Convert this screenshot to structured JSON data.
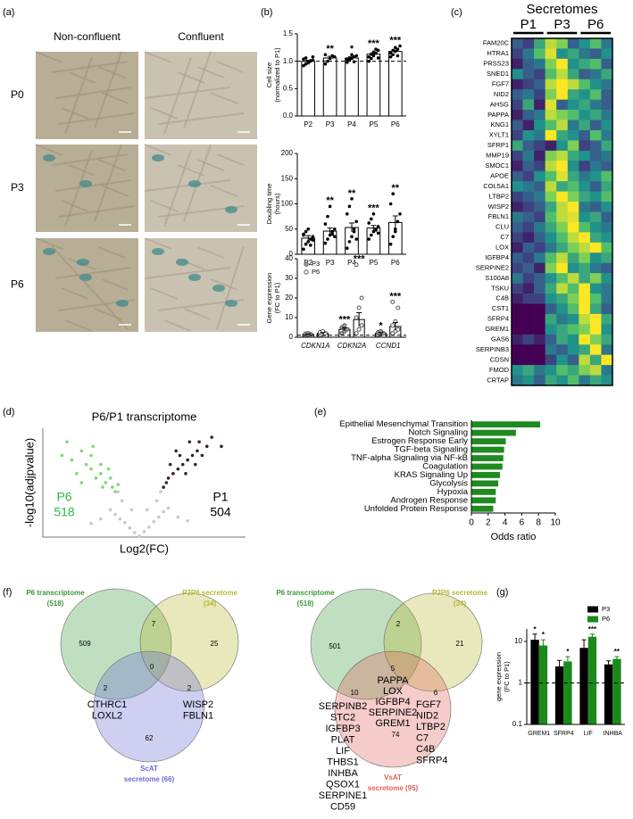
{
  "panel_labels": [
    "(a)",
    "(b)",
    "(c)",
    "(d)",
    "(e)",
    "(f)",
    "(g)"
  ],
  "micrographs": {
    "columns": [
      "Non-confluent",
      "Confluent"
    ],
    "rows": [
      "P0",
      "P3",
      "P6"
    ]
  },
  "chart_data": [
    {
      "type": "dot-bar",
      "ylabel": [
        "Cell size",
        "(normalized to P1)"
      ],
      "categories": [
        "P2",
        "P3",
        "P4",
        "P5",
        "P6"
      ],
      "values": [
        1.0,
        1.06,
        1.06,
        1.13,
        1.18
      ],
      "errors": [
        0.02,
        0.03,
        0.02,
        0.02,
        0.02
      ],
      "points": [
        [
          0.92,
          0.95,
          0.97,
          1.0,
          1.02,
          1.04,
          1.06,
          0.98,
          1.01,
          1.08
        ],
        [
          0.95,
          1.0,
          1.05,
          1.1,
          1.08,
          1.12
        ],
        [
          0.98,
          1.02,
          1.05,
          1.08,
          1.1,
          1.03,
          1.06,
          1.12,
          0.99
        ],
        [
          1.0,
          1.05,
          1.1,
          1.15,
          1.2,
          1.08,
          1.13,
          1.17,
          1.22,
          1.06
        ],
        [
          1.08,
          1.12,
          1.18,
          1.22,
          1.28,
          1.15,
          1.2,
          1.25,
          1.1
        ]
      ],
      "significance": [
        null,
        "**",
        "*",
        "***",
        "***"
      ],
      "color": "#ffffff",
      "ylim": [
        0,
        1.5
      ],
      "yticks": [
        {
          "value": 0,
          "label": "0.0"
        },
        {
          "value": 0.5,
          "label": "0.5"
        },
        {
          "value": 1,
          "label": "1.0"
        },
        {
          "value": 1.5,
          "label": "1.5"
        }
      ],
      "reference_line": 1
    },
    {
      "type": "dot-bar",
      "ylabel": [
        "Doubling time",
        "(hours)"
      ],
      "categories": [
        "P2",
        "P3",
        "P4",
        "P5",
        "P6"
      ],
      "values": [
        32,
        46,
        53,
        52,
        63
      ],
      "errors": [
        5,
        6,
        9,
        5,
        13
      ],
      "points": [
        [
          10,
          20,
          25,
          30,
          35,
          40,
          45,
          50,
          18,
          28,
          38
        ],
        [
          22,
          30,
          38,
          45,
          50,
          60,
          75,
          95,
          40,
          35
        ],
        [
          12,
          25,
          35,
          50,
          65,
          80,
          95,
          110,
          45,
          30
        ],
        [
          30,
          38,
          45,
          50,
          55,
          62,
          70,
          80,
          48,
          42
        ],
        [
          20,
          35,
          50,
          65,
          80,
          100,
          120,
          45
        ]
      ],
      "significance": [
        null,
        "**",
        "**",
        "***",
        "**"
      ],
      "color": "#ffffff",
      "ylim": [
        0,
        200
      ],
      "yticks": [
        0,
        50,
        100,
        150,
        200
      ]
    },
    {
      "type": "grouped-dot-bar",
      "ylabel": [
        "Gene expression",
        "(FC to P1)"
      ],
      "categories": [
        "CDKN1A",
        "CDKN2A",
        "CCND1"
      ],
      "series": [
        {
          "name": "P3",
          "color": "#a6a6a6",
          "values": [
            1.5,
            4,
            2
          ],
          "errors": [
            0.2,
            0.8,
            0.4
          ],
          "points": [
            [
              0.8,
              1.2,
              1.5,
              1.8,
              2.0
            ],
            [
              2,
              3,
              4,
              5,
              6
            ],
            [
              1,
              1.5,
              2,
              2.5,
              3
            ]
          ],
          "significance": [
            null,
            "***",
            "*"
          ]
        },
        {
          "name": "P6",
          "color": "#ffffff",
          "values": [
            2,
            9,
            5.5
          ],
          "errors": [
            0.4,
            3.5,
            2
          ],
          "points": [
            [
              1,
              1.5,
              2,
              2.5,
              3,
              1.8
            ],
            [
              2,
              4,
              6,
              10,
              15,
              20,
              37
            ],
            [
              2,
              3,
              4,
              6,
              8,
              15,
              18
            ]
          ],
          "significance": [
            null,
            "***",
            "***"
          ]
        }
      ],
      "ylim": [
        0,
        40
      ],
      "yticks": [
        0,
        10,
        20,
        30,
        40
      ],
      "reference_line": 1
    },
    {
      "type": "heatmap",
      "title": "Secretomes",
      "groups": [
        "P1",
        "P3",
        "P6"
      ],
      "colormap": "viridis",
      "rows": [
        "FAM20C",
        "HTRA1",
        "PRSS23",
        "SNED1",
        "FGF7",
        "NID2",
        "AHSG",
        "PAPPA",
        "KNG1",
        "XYLT1",
        "SFRP1",
        "MMP19",
        "SMOC1",
        "APOE",
        "COL5A1",
        "LTBP2",
        "WISP2",
        "FBLN1",
        "CLU",
        "C7",
        "LOX",
        "IGFBP4",
        "SERPINE2",
        "S100A8",
        "TSKU",
        "C4B",
        "CST1",
        "SFRP4",
        "GREM1",
        "GAS6",
        "SERPINB3",
        "CDSN",
        "FMOD",
        "CRTAP"
      ],
      "values": [
        [
          0.3,
          0.2,
          0.6,
          0.9,
          0.8,
          0.3,
          0.5,
          0.7,
          0.4
        ],
        [
          0.2,
          0.4,
          0.7,
          0.95,
          0.5,
          0.6,
          0.4,
          0.3,
          0.5
        ],
        [
          0.1,
          0.3,
          0.4,
          0.8,
          1.0,
          0.5,
          0.6,
          0.7,
          0.3
        ],
        [
          0.5,
          0.3,
          0.2,
          0.7,
          0.9,
          0.6,
          0.3,
          0.4,
          0.6
        ],
        [
          0.1,
          0.2,
          0.3,
          0.9,
          1.0,
          0.9,
          0.7,
          0.5,
          0.4
        ],
        [
          0.3,
          0.4,
          0.2,
          0.8,
          1.0,
          0.6,
          0.5,
          0.7,
          0.3
        ],
        [
          0.2,
          0.6,
          0.1,
          0.95,
          0.3,
          0.5,
          0.6,
          0.4,
          0.3
        ],
        [
          0.1,
          0.3,
          0.4,
          0.9,
          0.8,
          0.7,
          0.5,
          0.6,
          0.4
        ],
        [
          0.3,
          0.1,
          0.5,
          0.7,
          0.9,
          0.4,
          0.6,
          0.3,
          0.5
        ],
        [
          0.2,
          0.5,
          0.4,
          1.0,
          0.6,
          0.5,
          0.3,
          0.7,
          0.4
        ],
        [
          0.6,
          0.3,
          0.2,
          0.1,
          0.5,
          0.8,
          0.2,
          0.3,
          0.6
        ],
        [
          0.2,
          0.4,
          0.1,
          0.8,
          0.9,
          0.6,
          0.5,
          0.3,
          0.4
        ],
        [
          0.1,
          0.3,
          0.2,
          0.9,
          1.0,
          0.5,
          0.2,
          0.4,
          0.3
        ],
        [
          0.3,
          0.2,
          0.5,
          0.7,
          0.95,
          0.6,
          0.4,
          0.5,
          0.7
        ],
        [
          0.5,
          0.4,
          0.3,
          0.9,
          0.6,
          0.7,
          0.5,
          0.3,
          0.6
        ],
        [
          0.2,
          0.3,
          0.4,
          0.8,
          1.0,
          0.8,
          0.6,
          0.5,
          0.7
        ],
        [
          0.1,
          0.2,
          0.3,
          0.6,
          0.9,
          1.0,
          0.4,
          0.3,
          0.5
        ],
        [
          0.4,
          0.3,
          0.2,
          0.7,
          0.9,
          0.95,
          0.5,
          0.6,
          0.3
        ],
        [
          0.3,
          0.2,
          0.4,
          0.6,
          0.8,
          1.0,
          0.7,
          0.5,
          0.4
        ],
        [
          0.2,
          0.1,
          0.3,
          0.5,
          0.7,
          0.9,
          1.0,
          0.6,
          0.5
        ],
        [
          0.1,
          0.3,
          0.2,
          0.4,
          0.6,
          0.8,
          0.9,
          1.0,
          0.7
        ],
        [
          0.3,
          0.2,
          0.4,
          0.7,
          0.9,
          0.6,
          0.8,
          0.5,
          0.6
        ],
        [
          0.2,
          0.3,
          0.1,
          0.8,
          1.0,
          0.5,
          0.6,
          0.4,
          0.3
        ],
        [
          0.4,
          0.2,
          0.3,
          0.5,
          0.7,
          0.9,
          0.6,
          0.8,
          0.5
        ],
        [
          0.2,
          0.1,
          0.3,
          0.6,
          0.9,
          0.7,
          1.0,
          0.5,
          0.4
        ],
        [
          0.1,
          0.2,
          0.2,
          0.5,
          0.6,
          0.8,
          1.0,
          0.7,
          0.4
        ],
        [
          0.0,
          0.0,
          0.0,
          0.3,
          0.5,
          0.7,
          1.0,
          0.6,
          0.3
        ],
        [
          0.0,
          0.0,
          0.0,
          0.6,
          0.4,
          0.5,
          0.9,
          1.0,
          0.6
        ],
        [
          0.0,
          0.0,
          0.0,
          0.5,
          0.6,
          0.7,
          0.8,
          1.0,
          0.5
        ],
        [
          0.1,
          0.2,
          0.1,
          0.3,
          0.6,
          0.5,
          1.0,
          0.8,
          0.6
        ],
        [
          0.0,
          0.0,
          0.0,
          0.4,
          0.3,
          0.5,
          0.6,
          1.0,
          0.4
        ],
        [
          0.0,
          0.0,
          0.0,
          0.2,
          0.5,
          0.3,
          0.9,
          0.6,
          1.0
        ],
        [
          0.5,
          0.6,
          0.4,
          0.5,
          0.7,
          0.6,
          0.8,
          0.9,
          0.4
        ],
        [
          0.4,
          0.5,
          0.3,
          0.6,
          0.5,
          0.7,
          0.4,
          0.6,
          0.5
        ]
      ]
    },
    {
      "type": "volcano",
      "title": "P6/P1 transcriptome",
      "xlabel": "Log2(FC)",
      "ylabel": "-log10(adjpvalue)",
      "xlim": [
        -10,
        11
      ],
      "ylim": [
        0,
        12
      ],
      "series": [
        {
          "color": "#c8c8c8",
          "x": [
            -3,
            -2.5,
            -2,
            -1.5,
            -1,
            -0.5,
            0,
            0.5,
            1,
            1.5,
            2,
            2.5,
            3,
            -4,
            4,
            -1.8,
            1.8,
            -0.8,
            0.8,
            -2.2,
            2.2,
            -5,
            5
          ],
          "y": [
            3,
            2.5,
            2,
            1.6,
            1,
            0.5,
            0.1,
            0.6,
            1.1,
            1.7,
            2.2,
            2.8,
            3.2,
            2,
            2.2,
            4,
            4,
            3,
            3,
            5,
            5,
            1.5,
            1.8
          ]
        },
        {
          "color": "#7ed67e",
          "x": [
            -8,
            -7,
            -6.5,
            -6,
            -5.5,
            -5,
            -4.5,
            -4,
            -3.5,
            -3,
            -2.8,
            -2.5,
            -7.5,
            -6,
            -5,
            -4,
            -3.2,
            -2.2,
            -4.8,
            -3.8
          ],
          "y": [
            9,
            8.5,
            7,
            9.5,
            8,
            7.5,
            6.5,
            7,
            6,
            6.5,
            5.5,
            5,
            10.5,
            6,
            9,
            8,
            7.5,
            5.8,
            10,
            5.5
          ]
        },
        {
          "color": "#3d1f2e",
          "x": [
            2.5,
            3,
            3.5,
            4,
            4.5,
            5,
            5.5,
            6,
            6.5,
            7,
            2.8,
            3.2,
            4.2,
            5.2,
            6.2,
            3.8,
            4.8,
            5.8,
            7.5,
            8.5
          ],
          "y": [
            5.5,
            6.5,
            7,
            7.5,
            8,
            8.5,
            9,
            9.5,
            9,
            10,
            6,
            8,
            9,
            10.5,
            10.5,
            9.5,
            7,
            8,
            11,
            10
          ]
        }
      ],
      "annotations": [
        {
          "label": "P6",
          "count": 518,
          "color": "#2db84d"
        },
        {
          "label": "P1",
          "count": 504,
          "color": "#000000"
        }
      ]
    },
    {
      "type": "hbar",
      "categories": [
        "Epithelial Mesenchymal Transition",
        "Notch Signaling",
        "Estrogen Response Early",
        "TGF-beta Signaling",
        "TNF-alpha Signaling via NF-kB",
        "Coagulation",
        "KRAS Signaling Up",
        "Glycolysis",
        "Hypoxia",
        "Androgen Response",
        "Unfolded Protein Response"
      ],
      "values": [
        8.2,
        5.3,
        4.1,
        3.9,
        3.8,
        3.7,
        3.4,
        3.2,
        2.9,
        2.9,
        2.6
      ],
      "color": "#1f8a1f",
      "xlim": [
        0,
        10
      ],
      "xticks": [
        0,
        2,
        4,
        6,
        8,
        10
      ],
      "xlabel": "Odds ratio"
    },
    {
      "type": "log-bar",
      "log_scale": true,
      "ylabel": [
        "gene expression",
        "(FC to P1)"
      ],
      "categories": [
        "GREM1",
        "SFRP4",
        "LIF",
        "INHBA"
      ],
      "series": [
        {
          "name": "P3",
          "color": "#000000",
          "values": [
            11,
            2.5,
            7,
            2.8
          ],
          "errors": [
            4,
            1,
            4,
            0.6
          ],
          "significance": [
            "*",
            null,
            null,
            null
          ]
        },
        {
          "name": "P6",
          "color": "#1a8a1a",
          "values": [
            8,
            3.3,
            13,
            3.8
          ],
          "errors": [
            3,
            1,
            2,
            0.5
          ],
          "significance": [
            "*",
            "*",
            "***",
            "**"
          ]
        }
      ],
      "ylim": [
        0.1,
        20
      ],
      "yticks": [
        0.1,
        1,
        10
      ],
      "reference_line": 1,
      "legend": "upper right"
    }
  ],
  "venn": [
    {
      "sets": [
        {
          "name": "P6 transcriptome",
          "count": "(518)",
          "color": "#3a9a3a"
        },
        {
          "name": "P3P6 secretome",
          "count": "(34)",
          "color": "#b8b830"
        },
        {
          "name": "ScAT",
          "count": "secretome (66)",
          "color": "#6a6ad8"
        }
      ],
      "regions": {
        "A": 509,
        "AB": 7,
        "B": 25,
        "ABC": 0,
        "AC": 2,
        "BC": 2,
        "C": 62
      },
      "genes": {
        "AC": [
          "CTHRC1",
          "LOXL2"
        ],
        "BC": [
          "WISP2",
          "FBLN1"
        ]
      }
    },
    {
      "sets": [
        {
          "name": "P6 transcriptome",
          "count": "(518)",
          "color": "#3a9a3a"
        },
        {
          "name": "P3P6 secretome",
          "count": "(34)",
          "color": "#b8b830"
        },
        {
          "name": "VsAT",
          "count": "secretome (95)",
          "color": "#e0605a"
        }
      ],
      "regions": {
        "A": 501,
        "AB": 2,
        "B": 21,
        "ABC": 5,
        "AC": 10,
        "BC": 6,
        "C": 74
      },
      "genes": {
        "ABC": [
          "PAPPA",
          "LOX",
          "IGFBP4",
          "SERPINE2",
          "GREM1"
        ],
        "AC": [
          "SERPINB2",
          "STC2",
          "IGFBP3",
          "PLAT",
          "LIF",
          "THBS1",
          "INHBA",
          "QSOX1",
          "SERPINE1",
          "CD59"
        ],
        "BC": [
          "FGF7",
          "NID2",
          "LTBP2",
          "C7",
          "C4B",
          "SFRP4"
        ]
      }
    }
  ]
}
